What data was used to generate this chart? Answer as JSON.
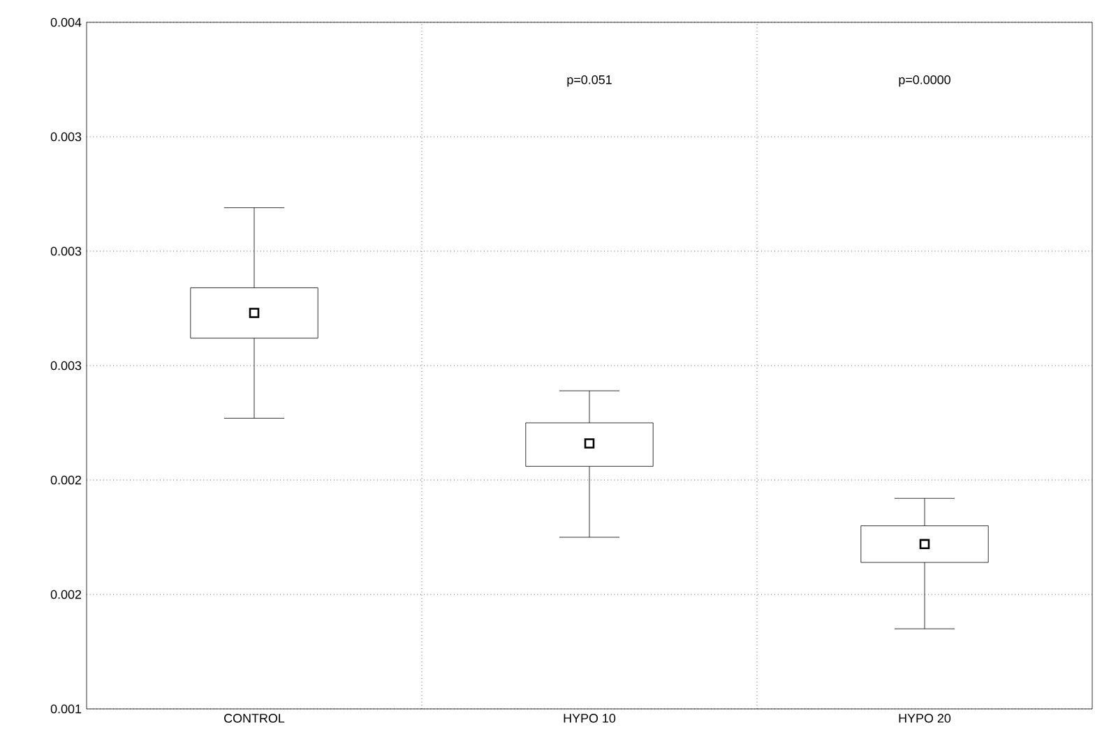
{
  "chart_data": {
    "type": "box",
    "categories": [
      "CONTROL",
      "HYPO 10",
      "HYPO 20"
    ],
    "boxes": [
      {
        "low": 0.00227,
        "q1": 0.00262,
        "median": 0.00273,
        "q3": 0.00284,
        "high": 0.00319
      },
      {
        "low": 0.00175,
        "q1": 0.00206,
        "median": 0.00216,
        "q3": 0.00225,
        "high": 0.00239
      },
      {
        "low": 0.00135,
        "q1": 0.00164,
        "median": 0.00172,
        "q3": 0.0018,
        "high": 0.00192
      }
    ],
    "ylim": [
      0.001,
      0.004
    ],
    "yticks": [
      0.001,
      {
        "value": 0.0015,
        "label": "0.002"
      },
      0.002,
      {
        "value": 0.0025,
        "label": "0.003"
      },
      0.003,
      {
        "value": 0.0035,
        "label": "0.003"
      },
      0.004
    ],
    "grid": true,
    "marker": "square",
    "annotations": [
      "p=0.051",
      "p=0.0000"
    ]
  }
}
